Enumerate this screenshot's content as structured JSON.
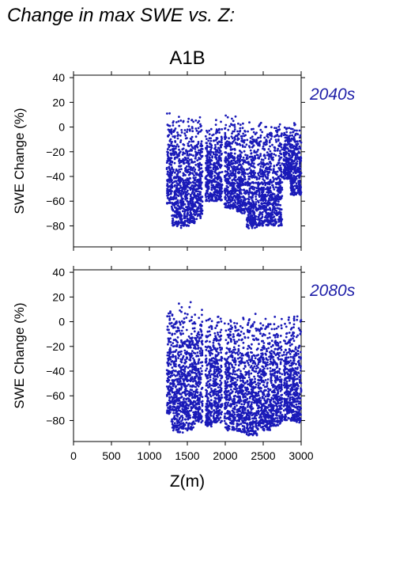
{
  "figure": {
    "main_title": "Change in max SWE vs. Z:",
    "scenario_label": "A1B",
    "xlabel": "Z(m)"
  },
  "chart_data": [
    {
      "type": "scatter",
      "panel_label": "2040s",
      "ylabel": "SWE Change (%)",
      "xlim": [
        0,
        3000
      ],
      "ylim": [
        -97,
        42
      ],
      "xticks": [
        0,
        500,
        1000,
        1500,
        2000,
        2500,
        3000
      ],
      "xtick_labels_shown": false,
      "yticks": [
        -80,
        -60,
        -40,
        -20,
        0,
        20,
        40
      ],
      "grid": false,
      "marker_color": "#1a1ab8",
      "label_color": "#1f1fa8",
      "x_range_of_points": [
        1230,
        3000
      ],
      "bands": [
        {
          "x0": 1230,
          "x1": 1290,
          "ymin": -62,
          "ymax": 12
        },
        {
          "x0": 1290,
          "x1": 1360,
          "ymin": -80,
          "ymax": 12
        },
        {
          "x0": 1360,
          "x1": 1440,
          "ymin": -82,
          "ymax": 12
        },
        {
          "x0": 1440,
          "x1": 1520,
          "ymin": -80,
          "ymax": 12
        },
        {
          "x0": 1520,
          "x1": 1600,
          "ymin": -78,
          "ymax": 11
        },
        {
          "x0": 1600,
          "x1": 1700,
          "ymin": -75,
          "ymax": 10
        },
        {
          "x0": 1740,
          "x1": 1830,
          "ymin": -60,
          "ymax": 8
        },
        {
          "x0": 1840,
          "x1": 1960,
          "ymin": -60,
          "ymax": 8
        },
        {
          "x0": 1990,
          "x1": 2140,
          "ymin": -66,
          "ymax": 10
        },
        {
          "x0": 2150,
          "x1": 2270,
          "ymin": -70,
          "ymax": 7
        },
        {
          "x0": 2280,
          "x1": 2420,
          "ymin": -82,
          "ymax": 7
        },
        {
          "x0": 2430,
          "x1": 2600,
          "ymin": -80,
          "ymax": 6
        },
        {
          "x0": 2600,
          "x1": 2750,
          "ymin": -80,
          "ymax": 6
        },
        {
          "x0": 2770,
          "x1": 2860,
          "ymin": -42,
          "ymax": 5
        },
        {
          "x0": 2860,
          "x1": 3000,
          "ymin": -55,
          "ymax": 5
        }
      ]
    },
    {
      "type": "scatter",
      "panel_label": "2080s",
      "ylabel": "SWE Change (%)",
      "xlim": [
        0,
        3000
      ],
      "ylim": [
        -97,
        42
      ],
      "xticks": [
        0,
        500,
        1000,
        1500,
        2000,
        2500,
        3000
      ],
      "xtick_labels_shown": true,
      "xtick_labels": [
        "0",
        "500",
        "1000",
        "1500",
        "2000",
        "2500",
        "3000"
      ],
      "yticks": [
        -80,
        -60,
        -40,
        -20,
        0,
        20,
        40
      ],
      "grid": false,
      "marker_color": "#1a1ab8",
      "label_color": "#1f1fa8",
      "x_range_of_points": [
        1230,
        3000
      ],
      "bands": [
        {
          "x0": 1230,
          "x1": 1290,
          "ymin": -75,
          "ymax": 17
        },
        {
          "x0": 1290,
          "x1": 1360,
          "ymin": -88,
          "ymax": 17
        },
        {
          "x0": 1360,
          "x1": 1440,
          "ymin": -90,
          "ymax": 18
        },
        {
          "x0": 1440,
          "x1": 1520,
          "ymin": -88,
          "ymax": 17
        },
        {
          "x0": 1520,
          "x1": 1600,
          "ymin": -88,
          "ymax": 16
        },
        {
          "x0": 1600,
          "x1": 1700,
          "ymin": -82,
          "ymax": 14
        },
        {
          "x0": 1740,
          "x1": 1830,
          "ymin": -85,
          "ymax": 9
        },
        {
          "x0": 1840,
          "x1": 1960,
          "ymin": -82,
          "ymax": 10
        },
        {
          "x0": 1990,
          "x1": 2140,
          "ymin": -88,
          "ymax": 9
        },
        {
          "x0": 2150,
          "x1": 2270,
          "ymin": -90,
          "ymax": 7
        },
        {
          "x0": 2280,
          "x1": 2420,
          "ymin": -92,
          "ymax": 7
        },
        {
          "x0": 2430,
          "x1": 2600,
          "ymin": -88,
          "ymax": 7
        },
        {
          "x0": 2600,
          "x1": 2750,
          "ymin": -85,
          "ymax": 6
        },
        {
          "x0": 2770,
          "x1": 2860,
          "ymin": -80,
          "ymax": 5
        },
        {
          "x0": 2860,
          "x1": 3000,
          "ymin": -82,
          "ymax": 6
        }
      ]
    }
  ]
}
